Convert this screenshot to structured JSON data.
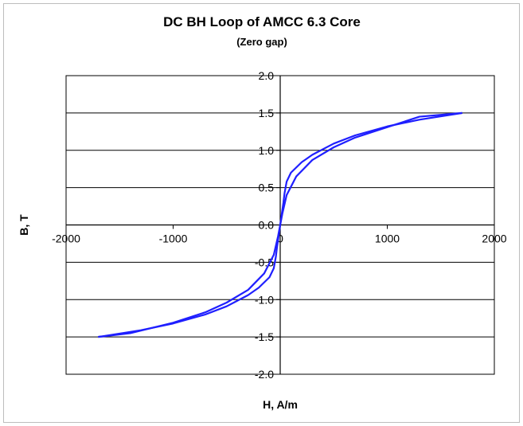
{
  "chart_data": {
    "type": "line",
    "title": "DC BH Loop of AMCC 6.3 Core",
    "subtitle": "(Zero gap)",
    "xlabel": "H, A/m",
    "ylabel": "B, T",
    "xlim": [
      -2000,
      2000
    ],
    "ylim": [
      -2.0,
      2.0
    ],
    "x_ticks": [
      -2000,
      -1000,
      0,
      1000,
      2000
    ],
    "x_tick_labels": [
      "-2000",
      "-1000",
      "0",
      "1000",
      "2000"
    ],
    "y_ticks": [
      2.0,
      1.5,
      1.0,
      0.5,
      0.0,
      -0.5,
      -1.0,
      -1.5,
      -2.0
    ],
    "y_tick_labels": [
      "2.0",
      "1.5",
      "1.0",
      "0.5",
      "0.0",
      "-0.5",
      "-1.0",
      "-1.5",
      "-2.0"
    ],
    "grid": true,
    "legend": "none",
    "line_color": "#1f1fff",
    "series": [
      {
        "x": [
          -1700,
          -1400,
          -1000,
          -700,
          -500,
          -300,
          -150,
          -60,
          -20,
          0,
          15,
          30,
          40,
          60,
          100,
          200,
          300,
          500,
          700,
          1000,
          1300,
          1700
        ],
        "y": [
          -1.5,
          -1.45,
          -1.31,
          -1.17,
          -1.04,
          -0.87,
          -0.65,
          -0.4,
          -0.15,
          0.0,
          0.15,
          0.3,
          0.42,
          0.58,
          0.7,
          0.84,
          0.94,
          1.09,
          1.2,
          1.32,
          1.41,
          1.5
        ]
      },
      {
        "x": [
          1700,
          1300,
          1000,
          700,
          500,
          300,
          150,
          60,
          20,
          0,
          -15,
          -30,
          -40,
          -60,
          -100,
          -200,
          -300,
          -500,
          -700,
          -1000,
          -1300,
          -1700
        ],
        "y": [
          1.5,
          1.45,
          1.31,
          1.17,
          1.04,
          0.87,
          0.65,
          0.4,
          0.15,
          0.0,
          -0.15,
          -0.3,
          -0.42,
          -0.58,
          -0.7,
          -0.84,
          -0.94,
          -1.09,
          -1.2,
          -1.32,
          -1.41,
          -1.5
        ]
      }
    ]
  }
}
